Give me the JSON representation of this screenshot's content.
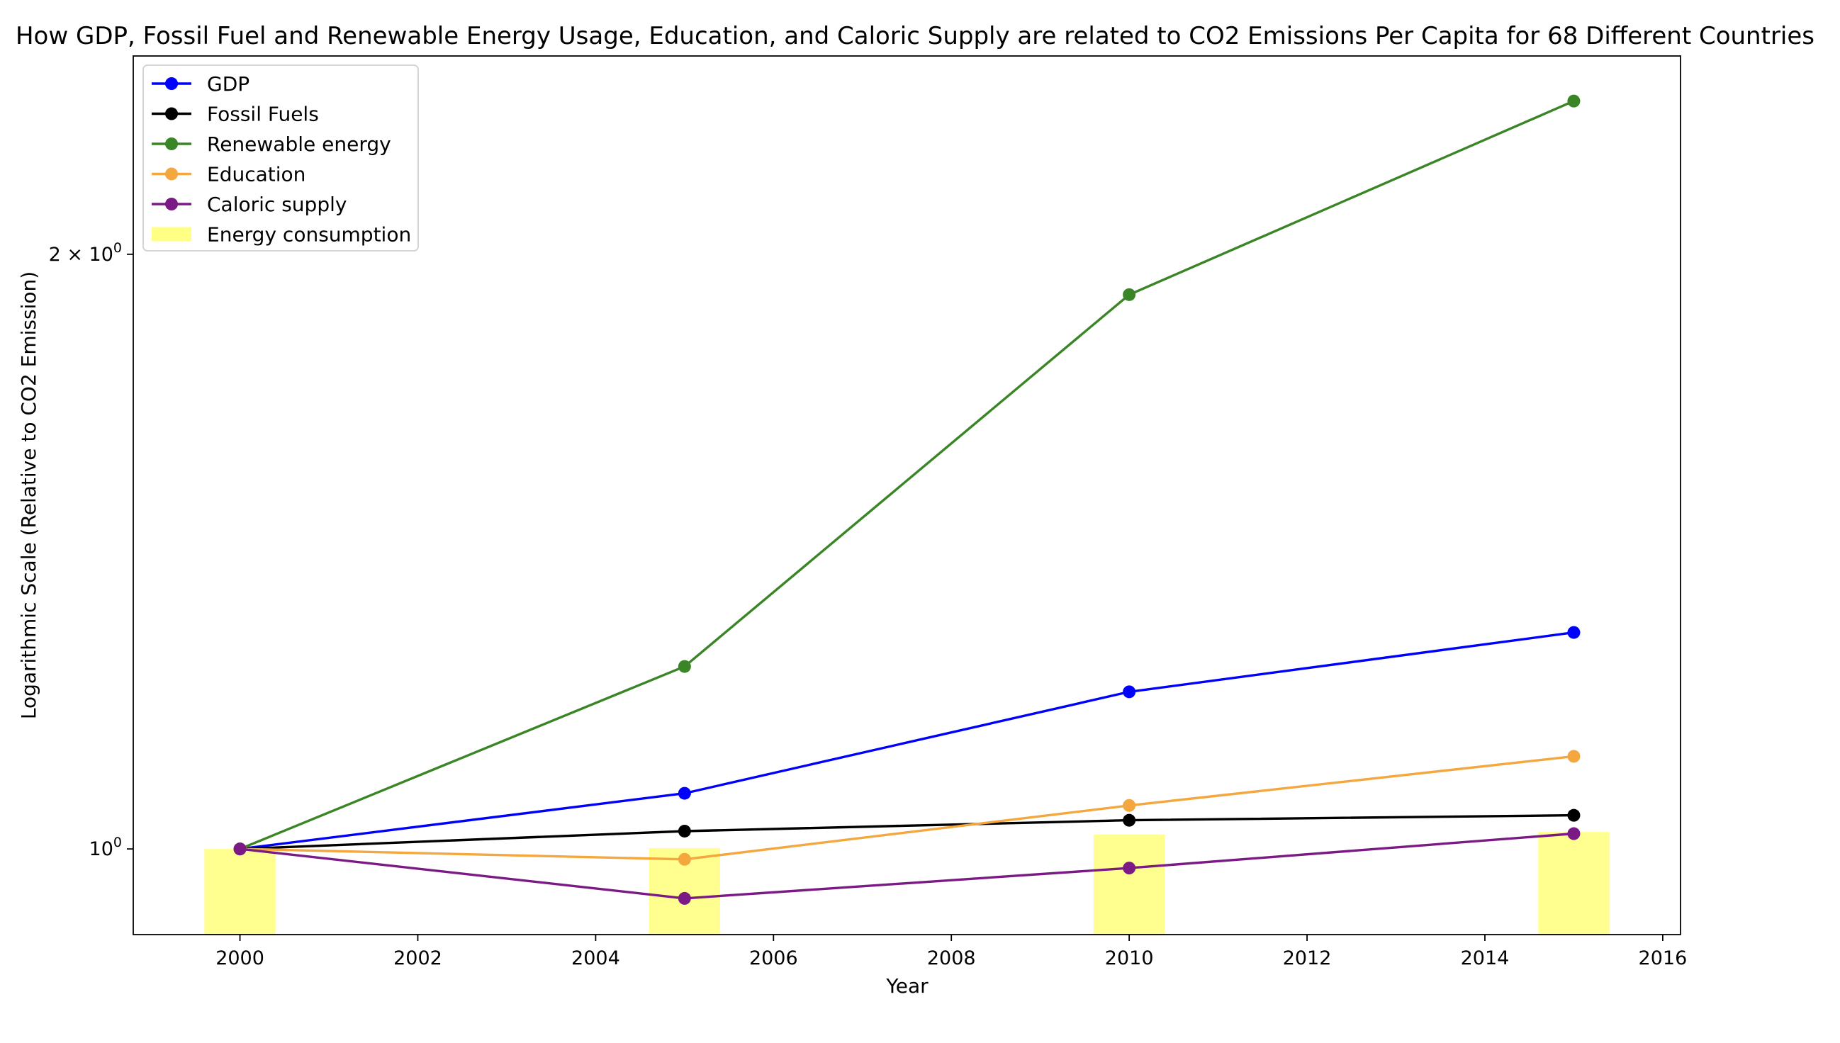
{
  "chart_data": {
    "type": "line",
    "title": "How GDP, Fossil Fuel and Renewable Energy Usage, Education, and Caloric Supply are related to CO2 Emissions Per Capita for 68 Different Countries",
    "xlabel": "Year",
    "ylabel": "Logarithmic Scale (Relative to CO2 Emission)",
    "yscale": "log",
    "xlim": [
      1998.8,
      2016.2
    ],
    "ylim": [
      0.905,
      2.52
    ],
    "x": [
      2000,
      2005,
      2010,
      2015
    ],
    "xticks": [
      2000,
      2002,
      2004,
      2006,
      2008,
      2010,
      2012,
      2014,
      2016
    ],
    "yticks": [
      {
        "value": 1.0,
        "base": "10",
        "exp": "0",
        "coef": ""
      },
      {
        "value": 2.0,
        "base": "10",
        "exp": "0",
        "coef": "2 × "
      }
    ],
    "series": [
      {
        "name": "GDP",
        "color": "#0000ff",
        "values": [
          1.0,
          1.067,
          1.201,
          1.287
        ]
      },
      {
        "name": "Fossil Fuels",
        "color": "#000000",
        "values": [
          1.0,
          1.021,
          1.034,
          1.04
        ]
      },
      {
        "name": "Renewable energy",
        "color": "#3a8526",
        "values": [
          1.0,
          1.237,
          1.908,
          2.391
        ]
      },
      {
        "name": "Education",
        "color": "#f5a73f",
        "values": [
          1.0,
          0.988,
          1.052,
          1.114
        ]
      },
      {
        "name": "Caloric supply",
        "color": "#7b1a85",
        "values": [
          1.0,
          0.944,
          0.978,
          1.018
        ]
      }
    ],
    "bars": {
      "name": "Energy consumption",
      "color": "#ffff84",
      "width_years": 0.8,
      "values": [
        1.0,
        1.001,
        1.017,
        1.02
      ]
    },
    "legend": "upper-left",
    "grid": false
  }
}
